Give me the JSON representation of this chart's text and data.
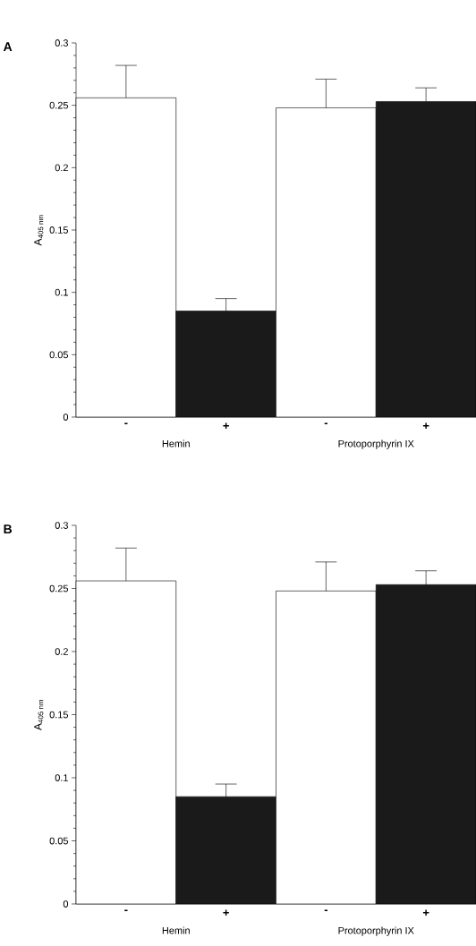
{
  "chart_data": [
    {
      "type": "bar",
      "title": "A",
      "ylabel": "A$_{405 nm}$",
      "categories": [
        "-",
        "+",
        "-",
        "+"
      ],
      "values": [
        0.256,
        0.085,
        0.248,
        0.253
      ],
      "colors": [
        "#ffffff",
        "#1a1a1a",
        "#ffffff",
        "#1a1a1a"
      ],
      "errors": [
        [
          0.256,
          0.282
        ],
        [
          0.085,
          0.095
        ],
        [
          0.248,
          0.271
        ],
        [
          0.253,
          0.264
        ]
      ],
      "ylim": [
        0,
        0.3
      ],
      "yticks": [
        0,
        0.05,
        0.1,
        0.15,
        0.2,
        0.25,
        0.3
      ],
      "annotations": [
        "Hemin",
        "Protoporphyrin IX"
      ]
    },
    {
      "type": "bar",
      "title": "B",
      "ylabel": "A$_{405 nm}$",
      "categories": [
        "-",
        "+",
        "-",
        "+"
      ],
      "values": [
        0.256,
        0.085,
        0.248,
        0.253
      ],
      "colors": [
        "#ffffff",
        "#1a1a1a",
        "#ffffff",
        "#1a1a1a"
      ],
      "errors": [
        [
          0.256,
          0.282
        ],
        [
          0.085,
          0.095
        ],
        [
          0.248,
          0.271
        ],
        [
          0.253,
          0.264
        ]
      ],
      "ylim": [
        0,
        0.3
      ],
      "yticks": [
        0,
        0.05,
        0.1,
        0.15,
        0.2,
        0.25,
        0.3
      ],
      "annotations": [
        "Hemin",
        "Protoporphyrin IX"
      ]
    }
  ]
}
